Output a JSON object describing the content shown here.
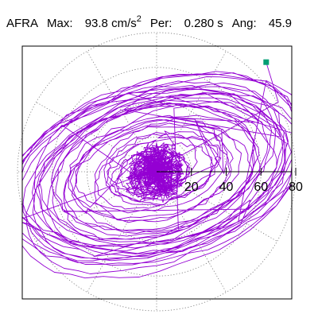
{
  "header": {
    "station": "AFRA",
    "max_label": "Max:",
    "max_value": "93.8",
    "max_unit": "cm/s",
    "max_unit_exp": "2",
    "per_label": "Per:",
    "per_value": "0.280 s",
    "ang_label": "Ang:",
    "ang_value": "45.9"
  },
  "chart_data": {
    "type": "polar-orbit",
    "units": "cm/s2",
    "radial_ticks": [
      20,
      40,
      60,
      80
    ],
    "radial_max": 80,
    "grid": true,
    "grid_style": "dotted",
    "trace_color": "#9400D3",
    "end_marker_color": "#009E73",
    "end_point": {
      "x": 63,
      "y": 63
    },
    "orbit": {
      "tilt_deg": 18,
      "seed": 7,
      "loops": [
        {
          "a": 8,
          "b": 6
        },
        {
          "a": 11,
          "b": 7
        },
        {
          "a": 14,
          "b": 9
        },
        {
          "a": 9,
          "b": 12
        },
        {
          "a": 16,
          "b": 8
        },
        {
          "a": 12,
          "b": 10
        },
        {
          "a": 20,
          "b": 12
        },
        {
          "a": 26,
          "b": 16
        },
        {
          "a": 32,
          "b": 18
        },
        {
          "a": 38,
          "b": 22
        },
        {
          "a": 44,
          "b": 25
        },
        {
          "a": 50,
          "b": 28
        },
        {
          "a": 56,
          "b": 31
        },
        {
          "a": 62,
          "b": 34
        },
        {
          "a": 66,
          "b": 37
        },
        {
          "a": 70,
          "b": 40
        },
        {
          "a": 74,
          "b": 42
        },
        {
          "a": 78,
          "b": 44
        },
        {
          "a": 82,
          "b": 46
        },
        {
          "a": 86,
          "b": 48
        },
        {
          "a": 88,
          "b": 50
        },
        {
          "a": 90,
          "b": 52
        },
        {
          "a": 84,
          "b": 47
        },
        {
          "a": 76,
          "b": 43
        },
        {
          "a": 68,
          "b": 39
        },
        {
          "a": 60,
          "b": 35
        },
        {
          "a": 52,
          "b": 30
        },
        {
          "a": 46,
          "b": 26
        },
        {
          "a": 40,
          "b": 23
        },
        {
          "a": 34,
          "b": 19
        },
        {
          "a": 28,
          "b": 16
        },
        {
          "a": 22,
          "b": 13
        },
        {
          "a": 17,
          "b": 11
        },
        {
          "a": 12,
          "b": 8
        },
        {
          "a": 79,
          "b": 48
        },
        {
          "a": 72,
          "b": 44
        },
        {
          "a": 64,
          "b": 41
        },
        {
          "a": 58,
          "b": 36
        },
        {
          "a": 81,
          "b": 45
        },
        {
          "a": 87,
          "b": 43
        }
      ]
    }
  }
}
